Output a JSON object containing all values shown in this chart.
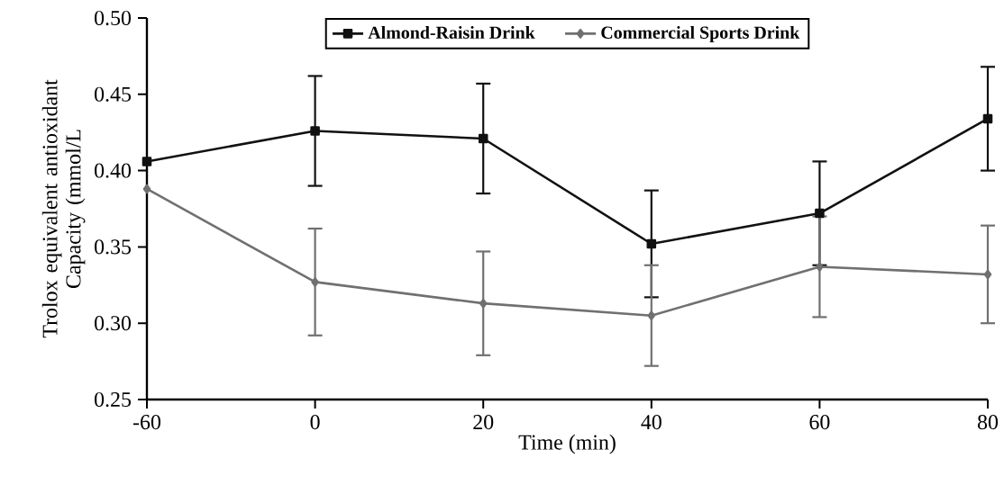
{
  "chart_data": {
    "type": "line",
    "xlabel": "Time (min)",
    "ylabel": "Trolox equivalent antioxidant Capacity (mmol/L",
    "categories": [
      "-60",
      "0",
      "20",
      "40",
      "60",
      "80"
    ],
    "series": [
      {
        "name": "Almond-Raisin Drink",
        "color": "#111111",
        "marker": "square",
        "values": [
          0.406,
          0.426,
          0.421,
          0.352,
          0.372,
          0.434
        ],
        "errors": [
          null,
          0.036,
          0.036,
          0.035,
          0.034,
          0.034
        ]
      },
      {
        "name": "Commercial Sports Drink",
        "color": "#707070",
        "marker": "diamond",
        "values": [
          0.388,
          0.327,
          0.313,
          0.305,
          0.337,
          0.332
        ],
        "errors": [
          null,
          0.035,
          0.034,
          0.033,
          0.033,
          0.032
        ]
      }
    ],
    "ylim": [
      0.25,
      0.5
    ],
    "yticks": [
      {
        "value": 0.25,
        "label": "0.25"
      },
      {
        "value": 0.3,
        "label": "0.30"
      },
      {
        "value": 0.35,
        "label": "0.35"
      },
      {
        "value": 0.4,
        "label": "0.40"
      },
      {
        "value": 0.45,
        "label": "0.45"
      },
      {
        "value": 0.5,
        "label": "0.50"
      }
    ],
    "grid": false,
    "legend": "top",
    "line_style": "solid"
  }
}
